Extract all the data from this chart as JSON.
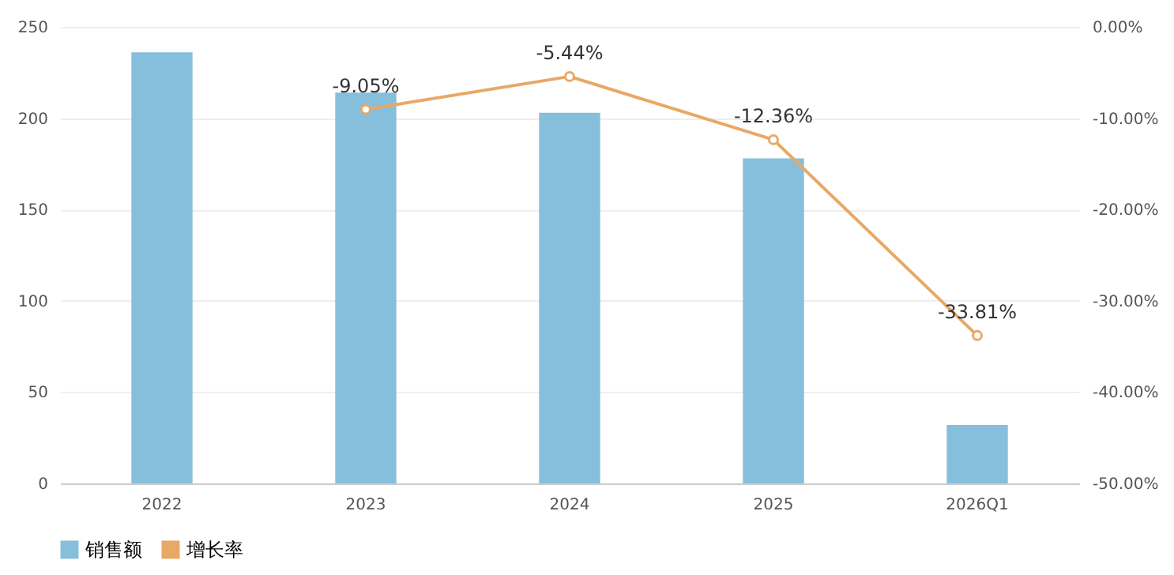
{
  "chart_data": {
    "type": "bar",
    "categories": [
      "2022",
      "2023",
      "2024",
      "2025",
      "2026Q1"
    ],
    "series": [
      {
        "name": "销售额",
        "color": "#86bfdc",
        "values": [
          236,
          214,
          203,
          178,
          32
        ]
      },
      {
        "name": "增长率",
        "type": "line",
        "axis": "y2",
        "color": "#e8a866",
        "marker": "circle",
        "values": [
          null,
          -9.05,
          -5.44,
          -12.36,
          -33.81
        ],
        "value_labels": [
          null,
          "-9.05%",
          "-5.44%",
          "-12.36%",
          "-33.81%"
        ]
      }
    ],
    "ylim": [
      0,
      250
    ],
    "yticks": [
      0,
      50,
      100,
      150,
      200,
      250
    ],
    "y2lim": [
      -50,
      0
    ],
    "y2ticks": [
      {
        "value": 0,
        "label": "0.00%"
      },
      {
        "value": -10,
        "label": "-10.00%"
      },
      {
        "value": -20,
        "label": "-20.00%"
      },
      {
        "value": -30,
        "label": "-30.00%"
      },
      {
        "value": -40,
        "label": "-40.00%"
      },
      {
        "value": -50,
        "label": "-50.00%"
      }
    ],
    "grid": "y",
    "legend": "bottom"
  }
}
